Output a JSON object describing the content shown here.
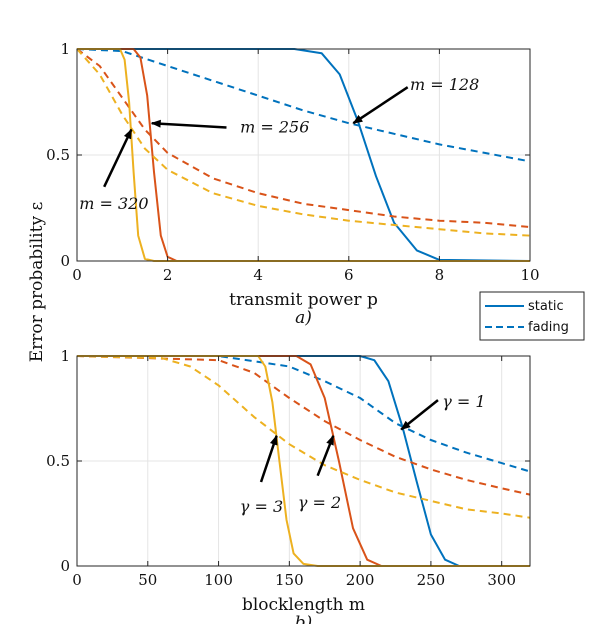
{
  "colors": {
    "blue": "#0072BD",
    "orange": "#D95319",
    "yellow": "#EDB120",
    "axis": "#262626"
  },
  "ylabel": "Error probability ε",
  "legend": {
    "items": [
      {
        "label": "static",
        "style": "solid"
      },
      {
        "label": "fading",
        "style": "dashed"
      }
    ]
  },
  "chart_data": [
    {
      "type": "line",
      "panel_label": "a)",
      "xlabel": "transmit power p",
      "xlim": [
        0,
        10
      ],
      "ylim": [
        0,
        1
      ],
      "xticks": [
        0,
        2,
        4,
        6,
        8,
        10
      ],
      "yticks": [
        "0",
        "0.5",
        "1"
      ],
      "grid": true,
      "series": [
        {
          "name": "m = 128 static",
          "color": "blue",
          "style": "solid",
          "x": [
            0,
            4.8,
            5.4,
            5.8,
            6.2,
            6.6,
            7.0,
            7.5,
            8.0,
            10
          ],
          "y": [
            1,
            1,
            0.98,
            0.88,
            0.66,
            0.4,
            0.18,
            0.05,
            0.005,
            0
          ]
        },
        {
          "name": "m = 128 fading",
          "color": "blue",
          "style": "dashed",
          "x": [
            0,
            1,
            2,
            3,
            4,
            5,
            6,
            7,
            8,
            9,
            10
          ],
          "y": [
            1,
            0.99,
            0.92,
            0.85,
            0.78,
            0.71,
            0.65,
            0.6,
            0.55,
            0.51,
            0.47
          ]
        },
        {
          "name": "m = 256 static",
          "color": "orange",
          "style": "solid",
          "x": [
            0,
            1.25,
            1.4,
            1.55,
            1.7,
            1.85,
            2.0,
            2.2,
            10
          ],
          "y": [
            1,
            1,
            0.96,
            0.78,
            0.42,
            0.12,
            0.02,
            0,
            0
          ]
        },
        {
          "name": "m = 256 fading",
          "color": "orange",
          "style": "dashed",
          "x": [
            0,
            0.5,
            1,
            1.5,
            2,
            3,
            4,
            5,
            6,
            7,
            8,
            9,
            10
          ],
          "y": [
            1,
            0.92,
            0.77,
            0.62,
            0.51,
            0.39,
            0.32,
            0.27,
            0.24,
            0.21,
            0.19,
            0.18,
            0.16
          ]
        },
        {
          "name": "m = 320 static",
          "color": "yellow",
          "style": "solid",
          "x": [
            0,
            0.95,
            1.05,
            1.15,
            1.25,
            1.35,
            1.5,
            1.7,
            10
          ],
          "y": [
            1,
            1,
            0.95,
            0.75,
            0.42,
            0.12,
            0.01,
            0,
            0
          ]
        },
        {
          "name": "m = 320 fading",
          "color": "yellow",
          "style": "dashed",
          "x": [
            0,
            0.5,
            1,
            1.5,
            2,
            3,
            4,
            5,
            6,
            7,
            8,
            9,
            10
          ],
          "y": [
            1,
            0.88,
            0.69,
            0.53,
            0.43,
            0.32,
            0.26,
            0.22,
            0.19,
            0.17,
            0.15,
            0.13,
            0.12
          ]
        }
      ],
      "annotations": [
        {
          "text": "m = 128",
          "tip": [
            6.1,
            0.65
          ],
          "tail": [
            7.3,
            0.82
          ],
          "text_at": [
            7.35,
            0.83
          ]
        },
        {
          "text": "m = 256",
          "tip": [
            1.65,
            0.65
          ],
          "tail": [
            3.3,
            0.63
          ],
          "text_at": [
            3.6,
            0.63
          ]
        },
        {
          "text": "m = 320",
          "tip": [
            1.2,
            0.62
          ],
          "tail": [
            0.6,
            0.35
          ],
          "text_at": [
            0.05,
            0.27
          ]
        }
      ]
    },
    {
      "type": "line",
      "panel_label": "b)",
      "xlabel": "blocklength m",
      "xlim": [
        0,
        320
      ],
      "ylim": [
        0,
        1
      ],
      "xticks": [
        0,
        50,
        100,
        150,
        200,
        250,
        300
      ],
      "yticks": [
        "0",
        "0.5",
        "1"
      ],
      "grid": true,
      "series": [
        {
          "name": "γ = 1 static",
          "color": "blue",
          "style": "solid",
          "x": [
            0,
            200,
            210,
            220,
            230,
            240,
            250,
            260,
            270,
            320
          ],
          "y": [
            1,
            1,
            0.98,
            0.88,
            0.66,
            0.4,
            0.15,
            0.03,
            0,
            0
          ]
        },
        {
          "name": "γ = 1 fading",
          "color": "blue",
          "style": "dashed",
          "x": [
            0,
            100,
            150,
            175,
            200,
            225,
            250,
            275,
            300,
            320
          ],
          "y": [
            1,
            1,
            0.95,
            0.88,
            0.8,
            0.68,
            0.6,
            0.54,
            0.49,
            0.45
          ]
        },
        {
          "name": "γ = 2 static",
          "color": "orange",
          "style": "solid",
          "x": [
            0,
            155,
            165,
            175,
            185,
            195,
            205,
            215,
            320
          ],
          "y": [
            1,
            1,
            0.96,
            0.8,
            0.5,
            0.18,
            0.03,
            0,
            0
          ]
        },
        {
          "name": "γ = 2 fading",
          "color": "orange",
          "style": "dashed",
          "x": [
            0,
            100,
            125,
            150,
            175,
            200,
            225,
            250,
            275,
            300,
            320
          ],
          "y": [
            1,
            0.98,
            0.92,
            0.8,
            0.69,
            0.6,
            0.52,
            0.46,
            0.41,
            0.37,
            0.34
          ]
        },
        {
          "name": "γ = 3 static",
          "color": "yellow",
          "style": "solid",
          "x": [
            0,
            128,
            133,
            138,
            143,
            148,
            153,
            160,
            170,
            320
          ],
          "y": [
            1,
            1,
            0.95,
            0.78,
            0.5,
            0.22,
            0.06,
            0.01,
            0,
            0
          ]
        },
        {
          "name": "γ = 3 fading",
          "color": "yellow",
          "style": "dashed",
          "x": [
            0,
            60,
            80,
            100,
            125,
            150,
            175,
            200,
            225,
            250,
            275,
            300,
            320
          ],
          "y": [
            1,
            0.99,
            0.95,
            0.86,
            0.71,
            0.58,
            0.48,
            0.41,
            0.35,
            0.31,
            0.27,
            0.25,
            0.23
          ]
        }
      ],
      "annotations": [
        {
          "text": "γ = 1",
          "tip": [
            229,
            0.65
          ],
          "tail": [
            255,
            0.79
          ],
          "text_at": [
            258,
            0.78
          ]
        },
        {
          "text": "γ = 2",
          "tip": [
            181,
            0.62
          ],
          "tail": [
            170,
            0.43
          ],
          "text_at": [
            156,
            0.3
          ]
        },
        {
          "text": "γ = 3",
          "tip": [
            141,
            0.62
          ],
          "tail": [
            130,
            0.4
          ],
          "text_at": [
            115,
            0.28
          ]
        }
      ]
    }
  ]
}
